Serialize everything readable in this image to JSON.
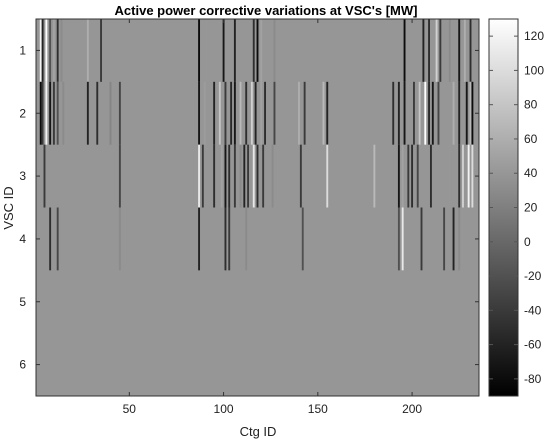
{
  "chart_data": {
    "type": "heatmap",
    "title": "Active power corrective variations at VSC's [MW]",
    "xlabel": "Ctg ID",
    "ylabel": "VSC ID",
    "xlim": [
      0.5,
      235.5
    ],
    "ylim": [
      0.5,
      6.5
    ],
    "x_ticks": [
      "50",
      "100",
      "150",
      "200"
    ],
    "y_ticks": [
      "1",
      "2",
      "3",
      "4",
      "5",
      "6"
    ],
    "colorbar": {
      "colormap": "gray",
      "range": [
        -90,
        130
      ],
      "ticks": [
        "120",
        "100",
        "80",
        "60",
        "40",
        "20",
        "0",
        "-20",
        "-40",
        "-60",
        "-80"
      ]
    },
    "background_value": 0,
    "nonzero_cells": {
      "1": [
        [
          3,
          120
        ],
        [
          4,
          -60
        ],
        [
          6,
          130
        ],
        [
          8,
          -20
        ],
        [
          10,
          50
        ],
        [
          12,
          -50
        ],
        [
          14,
          30
        ],
        [
          28,
          60
        ],
        [
          35,
          -40
        ],
        [
          87,
          -80
        ],
        [
          91,
          40
        ],
        [
          100,
          -70
        ],
        [
          106,
          -60
        ],
        [
          116,
          -50
        ],
        [
          118,
          -80
        ],
        [
          120,
          50
        ],
        [
          127,
          30
        ],
        [
          196,
          -80
        ],
        [
          206,
          -60
        ],
        [
          209,
          -50
        ],
        [
          213,
          90
        ],
        [
          215,
          -40
        ],
        [
          220,
          30
        ],
        [
          225,
          -70
        ],
        [
          228,
          60
        ],
        [
          231,
          -50
        ]
      ],
      "2": [
        [
          3,
          -80
        ],
        [
          4,
          -40
        ],
        [
          6,
          120
        ],
        [
          8,
          -70
        ],
        [
          10,
          -40
        ],
        [
          12,
          -20
        ],
        [
          15,
          30
        ],
        [
          28,
          -60
        ],
        [
          33,
          -50
        ],
        [
          40,
          25
        ],
        [
          45,
          -30
        ],
        [
          87,
          -70
        ],
        [
          90,
          45
        ],
        [
          95,
          -60
        ],
        [
          98,
          80
        ],
        [
          101,
          -40
        ],
        [
          104,
          -55
        ],
        [
          106,
          -70
        ],
        [
          109,
          70
        ],
        [
          112,
          -50
        ],
        [
          115,
          90
        ],
        [
          117,
          -60
        ],
        [
          120,
          50
        ],
        [
          122,
          -50
        ],
        [
          127,
          -30
        ],
        [
          140,
          60
        ],
        [
          143,
          -40
        ],
        [
          153,
          70
        ],
        [
          155,
          -60
        ],
        [
          190,
          -50
        ],
        [
          193,
          -60
        ],
        [
          196,
          -70
        ],
        [
          198,
          40
        ],
        [
          201,
          -40
        ],
        [
          204,
          80
        ],
        [
          207,
          130
        ],
        [
          209,
          -55
        ],
        [
          211,
          -70
        ],
        [
          214,
          -30
        ],
        [
          222,
          60
        ],
        [
          225,
          -60
        ],
        [
          229,
          -70
        ],
        [
          231,
          70
        ],
        [
          232,
          -80
        ]
      ],
      "3": [
        [
          5,
          -40
        ],
        [
          45,
          -30
        ],
        [
          87,
          110
        ],
        [
          89,
          -40
        ],
        [
          95,
          -50
        ],
        [
          99,
          50
        ],
        [
          101,
          -70
        ],
        [
          103,
          -50
        ],
        [
          106,
          -40
        ],
        [
          109,
          30
        ],
        [
          111,
          -60
        ],
        [
          113,
          -40
        ],
        [
          116,
          110
        ],
        [
          118,
          -50
        ],
        [
          121,
          -40
        ],
        [
          126,
          30
        ],
        [
          141,
          -40
        ],
        [
          155,
          100
        ],
        [
          180,
          70
        ],
        [
          193,
          -70
        ],
        [
          195,
          50
        ],
        [
          198,
          -40
        ],
        [
          200,
          -50
        ],
        [
          203,
          -30
        ],
        [
          210,
          -50
        ],
        [
          220,
          40
        ],
        [
          225,
          -50
        ],
        [
          227,
          90
        ],
        [
          230,
          120
        ],
        [
          232,
          100
        ]
      ],
      "4": [
        [
          8,
          -50
        ],
        [
          12,
          -30
        ],
        [
          45,
          30
        ],
        [
          87,
          -60
        ],
        [
          101,
          -50
        ],
        [
          103,
          -40
        ],
        [
          112,
          30
        ],
        [
          142,
          -20
        ],
        [
          193,
          -20
        ],
        [
          195,
          110
        ],
        [
          205,
          -40
        ],
        [
          217,
          -30
        ],
        [
          222,
          -60
        ],
        [
          225,
          30
        ]
      ]
    }
  }
}
